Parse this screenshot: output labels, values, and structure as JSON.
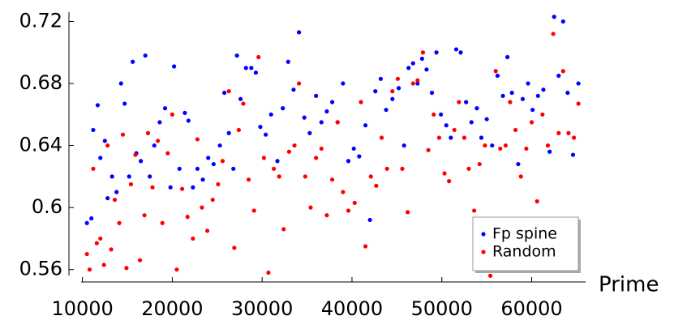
{
  "chart_data": {
    "type": "scatter",
    "x_label": "Prime",
    "xlim": [
      8500,
      66000
    ],
    "ylim": [
      0.552,
      0.726
    ],
    "xticks": [
      10000,
      20000,
      30000,
      40000,
      50000,
      60000
    ],
    "yticks": [
      0.56,
      0.6,
      0.64,
      0.68,
      0.72
    ],
    "legend": "lower right",
    "series": [
      {
        "name": "Fp spine",
        "color": "#0000ff",
        "x": [
          10500,
          11000,
          11200,
          11700,
          12000,
          12500,
          12800,
          13300,
          13800,
          14300,
          14700,
          15200,
          15600,
          16000,
          16500,
          17000,
          17500,
          18000,
          18600,
          19200,
          19800,
          20200,
          20800,
          21400,
          21800,
          22300,
          22800,
          23400,
          24000,
          24600,
          25300,
          25800,
          26300,
          26800,
          27200,
          27600,
          28200,
          28800,
          29300,
          29800,
          30400,
          31000,
          31700,
          32300,
          32900,
          33500,
          34100,
          34700,
          35300,
          36000,
          36600,
          37200,
          37800,
          38400,
          39000,
          39600,
          40200,
          40800,
          41500,
          42000,
          42600,
          43200,
          43800,
          44500,
          45200,
          45800,
          46300,
          46800,
          47300,
          47800,
          48300,
          48900,
          49400,
          49900,
          50500,
          51000,
          51600,
          52100,
          52700,
          53300,
          53900,
          54400,
          55000,
          55600,
          56200,
          56800,
          57300,
          57800,
          58500,
          59000,
          59600,
          60100,
          60700,
          61300,
          62000,
          62500,
          63000,
          63500,
          64000,
          64600,
          65200
        ],
        "values": [
          0.59,
          0.593,
          0.65,
          0.666,
          0.632,
          0.643,
          0.606,
          0.62,
          0.61,
          0.68,
          0.667,
          0.62,
          0.694,
          0.635,
          0.63,
          0.698,
          0.62,
          0.64,
          0.655,
          0.664,
          0.613,
          0.691,
          0.625,
          0.661,
          0.656,
          0.613,
          0.625,
          0.618,
          0.632,
          0.628,
          0.64,
          0.674,
          0.648,
          0.625,
          0.698,
          0.67,
          0.69,
          0.69,
          0.687,
          0.652,
          0.647,
          0.66,
          0.63,
          0.664,
          0.694,
          0.676,
          0.713,
          0.658,
          0.648,
          0.672,
          0.655,
          0.662,
          0.668,
          0.655,
          0.68,
          0.63,
          0.638,
          0.633,
          0.653,
          0.592,
          0.675,
          0.683,
          0.663,
          0.67,
          0.677,
          0.64,
          0.69,
          0.693,
          0.68,
          0.696,
          0.689,
          0.674,
          0.7,
          0.66,
          0.653,
          0.645,
          0.702,
          0.7,
          0.668,
          0.655,
          0.664,
          0.645,
          0.657,
          0.64,
          0.685,
          0.672,
          0.697,
          0.674,
          0.628,
          0.67,
          0.68,
          0.663,
          0.672,
          0.676,
          0.636,
          0.723,
          0.685,
          0.72,
          0.674,
          0.634,
          0.68
        ]
      },
      {
        "name": "Random",
        "color": "#ff0000",
        "x": [
          10500,
          10800,
          11200,
          11600,
          12000,
          12400,
          12800,
          13200,
          13600,
          14100,
          14500,
          14900,
          15400,
          15900,
          16400,
          16900,
          17300,
          17800,
          18400,
          18900,
          19500,
          20000,
          20500,
          21100,
          21700,
          22300,
          22800,
          23300,
          23900,
          24500,
          25100,
          25600,
          26300,
          26900,
          27400,
          27900,
          28500,
          29100,
          29600,
          30200,
          30700,
          31300,
          31900,
          32400,
          33000,
          33600,
          34100,
          34800,
          35400,
          36000,
          36600,
          37200,
          37800,
          38400,
          39000,
          39600,
          40300,
          41000,
          41500,
          42100,
          42700,
          43300,
          43900,
          44500,
          45100,
          45600,
          46200,
          46800,
          47300,
          47900,
          48500,
          49100,
          49700,
          50300,
          50800,
          51400,
          51900,
          52500,
          53000,
          53600,
          54200,
          54800,
          55400,
          56000,
          56500,
          57100,
          57600,
          58200,
          58800,
          59400,
          60000,
          60600,
          61200,
          61800,
          62400,
          63000,
          63500,
          64100,
          64700,
          65200
        ],
        "values": [
          0.57,
          0.56,
          0.625,
          0.577,
          0.58,
          0.563,
          0.64,
          0.573,
          0.605,
          0.59,
          0.647,
          0.561,
          0.615,
          0.634,
          0.566,
          0.595,
          0.648,
          0.613,
          0.643,
          0.59,
          0.635,
          0.66,
          0.56,
          0.612,
          0.594,
          0.58,
          0.644,
          0.6,
          0.585,
          0.605,
          0.615,
          0.63,
          0.675,
          0.574,
          0.65,
          0.667,
          0.618,
          0.598,
          0.697,
          0.632,
          0.558,
          0.625,
          0.62,
          0.586,
          0.636,
          0.64,
          0.68,
          0.62,
          0.6,
          0.632,
          0.638,
          0.595,
          0.618,
          0.655,
          0.61,
          0.598,
          0.603,
          0.668,
          0.575,
          0.62,
          0.614,
          0.645,
          0.625,
          0.675,
          0.683,
          0.625,
          0.597,
          0.68,
          0.682,
          0.7,
          0.637,
          0.66,
          0.645,
          0.622,
          0.617,
          0.65,
          0.668,
          0.645,
          0.625,
          0.598,
          0.628,
          0.64,
          0.556,
          0.688,
          0.638,
          0.64,
          0.668,
          0.65,
          0.62,
          0.638,
          0.655,
          0.604,
          0.66,
          0.64,
          0.712,
          0.648,
          0.688,
          0.648,
          0.645,
          0.667
        ]
      }
    ]
  }
}
